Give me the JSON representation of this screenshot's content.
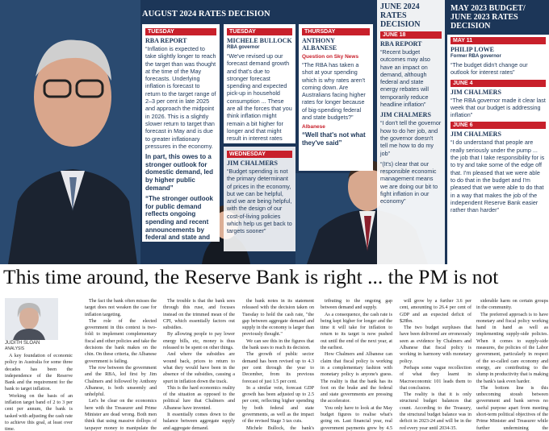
{
  "graphic": {
    "aug_heading": "AUGUST 2024 RATES DECISION",
    "cards": [
      {
        "items": [
          {
            "day": "TUESDAY"
          },
          {
            "name": "RBA REPORT"
          },
          {
            "quote": "“Inflation is expected to take slightly longer to reach the target than was thought at the time of the May forecasts. Underlying inflation is forecast to return to the target range of 2–3 per cent in late 2025 and approach the midpoint in 2026. This is a slightly slower return to target than forecast in May and is due to greater inflationary pressures in the economy."
          },
          {
            "quote": "In part, this owes to a stronger outlook for domestic demand, led by higher public demand”"
          },
          {
            "quote": "“The stronger outlook for public demand reflects ongoing spending and recent announcements by federal and state and territory governments”"
          }
        ]
      },
      {
        "items": [
          {
            "day": "TUESDAY"
          },
          {
            "name": "MICHELE BULLOCK"
          },
          {
            "role": "RBA governor"
          },
          {
            "quote": "“We've revised up our forecast demand growth and that's due to stronger forecast spending and expected pick-up in household consumption ... These are all the forces that you think inflation might remain a bit higher for longer and that might result in interest rates remaining higher for longer”"
          }
        ]
      },
      {
        "items": [
          {
            "day": "WEDNESDAY"
          },
          {
            "name": "JIM CHALMERS"
          },
          {
            "quote": "“Budget spending is not the primary determinant of prices in the economy, but we can be helpful, and we are being helpful, with the design of our cost-of-living policies which help us get back to targets sooner”"
          }
        ]
      },
      {
        "items": [
          {
            "day": "THURSDAY"
          },
          {
            "name": "ANTHONY ALBANESE"
          },
          {
            "label": "Question on Sky News"
          },
          {
            "quote": "“The RBA has taken a shot at your spending which is why rates aren't coming down. Are Australians facing higher rates for longer because of big-spending federal and state budgets?”"
          },
          {
            "label": "Albanese"
          },
          {
            "quote": "“Well that's not what they've said”"
          }
        ]
      },
      {
        "items": [
          {
            "heading": "JUNE 2024 RATES DECISION"
          },
          {
            "day": "JUNE 18"
          },
          {
            "name": "RBA REPORT"
          },
          {
            "quote": "“Recent budget outcomes may also have an impact on demand, although federal and state energy rebates will temporarily reduce headline inflation”"
          },
          {
            "name": "JIM CHALMERS"
          },
          {
            "quote": "“I don't tell the governor how to do her job, and the governor doesn't tell me how to do my job”"
          },
          {
            "quote": "“(It's) clear that our responsible economic management means we are doing our bit to fight inflation in our economy”"
          }
        ]
      },
      {
        "items": [
          {
            "heading": "MAY 2023 BUDGET/ JUNE 2023 RATES DECISION"
          },
          {
            "day": "MAY 11"
          },
          {
            "name": "PHILIP LOWE"
          },
          {
            "role": "Former RBA governor"
          },
          {
            "quote": "“The budget didn't change our outlook for interest rates”"
          },
          {
            "day": "JUNE 4"
          },
          {
            "name": "JIM CHALMERS"
          },
          {
            "quote": "“The RBA governor made it clear last week that our budget is addressing inflation”"
          },
          {
            "day": "JUNE 6"
          },
          {
            "name": "JIM CHALMERS"
          },
          {
            "quote": "“I do understand that people are really seriously under the pump ... the job that I take responsibility for is to try and take some of the edge off that. I'm pleased that we were able to do that in the budget and I'm pleased that we were able to do that in a way that makes the job of the independent Reserve Bank easier rather than harder”"
          }
        ]
      }
    ]
  },
  "article": {
    "headline": "This time around, the Reserve Bank is right ... the PM is not",
    "author": "JUDITH SLOAN",
    "author_role": "ANALYSIS",
    "columns": [
      {
        "paragraphs": [
          "A key foundation of economic policy in Australia for some three decades has been the independence of the Reserve Bank and the requirement for the bank to target inflation.",
          "Working on the basis of an inflation target band of 2 to 3 per cent per annum, the bank is tasked with adjusting the cash rate to achieve this goal, at least over time."
        ]
      },
      {
        "paragraphs": [
          "The fact the bank often misses the target does not weaken the case for inflation targeting.",
          "The role of the elected government in this context is two-fold: to implement complementary fiscal and other policies and take the decisions the bank makes on the chin. On these criteria, the Albanese government is failing.",
          "The row between the government and the RBA, led first by Jim Chalmers and followed by Anthony Albanese, is both unseemly and unhelpful.",
          "Let's be clear on the economics here with the Treasurer and Prime Minister are dead wrong. Both men think that using massive dollops of taxpayer money to manipulate the headline CPI is actually achieving the return to the stated inflation target."
        ]
      },
      {
        "paragraphs": [
          "The trouble is that the bank sees through this ruse, and focuses instead on the trimmed mean of the CPI, which essentially factors out subsidies.",
          "By allowing people to pay lower energy bills, etc, money is thus released to be spent on other things.",
          "And where the subsidies are wound back, prices to return to what they would have been in the absence of the subsidies, causing a spurt in inflation down the track.",
          "This is the hard economics reality of the situation as opposed to the political lure that Chalmers and Albanese have invented.",
          "It essentially comes down to the balance between aggregate supply and aggregate demand.",
          "Public sector spending feeds directly into aggregate demand. As"
        ]
      },
      {
        "paragraphs": [
          "the bank notes in its statement released with the decision taken on Tuesday to hold the cash rate, \"the gap between aggregate demand and supply in the economy is larger than previously thought.\"",
          "We can see this in the figures that the bank uses to reach its decision.",
          "The growth of public sector demand has been revised up to 4.3 per cent through the year to December, from its previous forecast of just 1.5 per cent.",
          "In a similar vein, forecast GDP growth has been adjusted up to 2.5 per cent, reflecting higher spending by both federal and state governments, as well as the impact of the revised Stage 3 tax cuts.",
          "Michele Bullock, the bank's governor, explicitly pointed to public sector spending as con-"
        ]
      },
      {
        "paragraphs": [
          "tributing to the ongoing gap between demand and supply.",
          "As a consequence, the cash rate is being kept higher for longer and the time it will take for inflation to return to its target is now pushed out until the end of the next year, at the earliest.",
          "How Chalmers and Albanese can claim that fiscal policy is working in a complementary fashion with monetary policy is anyone's guess. The reality is that the bank has its foot on the brake and the federal and state governments are pressing the accelerator.",
          "You only have to look at the May budget figures to realise what's going on. Last financial year, real government payments grew by 4.5 per cent, coming in at 25.4 per cent of GDP.",
          "This financial year, payments"
        ]
      },
      {
        "paragraphs": [
          "will grow by a further 3.6 per cent, amounting to 26.4 per cent of GDP and an expected deficit of $28bn.",
          "The two budget surpluses that have been delivered are erroneously seen as evidence by Chalmers and Albanese that fiscal policy is working in harmony with monetary policy.",
          "Perhaps some vague recollection of what they learnt in Macroeconomic 101 leads them to that conclusion.",
          "The reality is that it is only structural budget balances that count. According to the Treasury, the structural budget balance was in deficit in 2023-24 and will be in the red every year until 2034-35.",
          "The sad reality is that relying solely on monetary policy to tame inflation is costly, inflicting con-"
        ]
      },
      {
        "paragraphs": [
          "siderable harm on certain groups in the community.",
          "The preferred approach is to have monetary and fiscal policy working hand in hand as well as implementing supply-side policies. When it comes to supply-side measures, the policies of the Labor government, particularly in respect of the so-called care economy and energy, are contributing to the slump in productivity that is making the bank's task even harder.",
          "The bottom line is this unbecoming stoush between government and bank serves no useful purpose apart from meeting short-term political objectives of the Prime Minister and Treasurer while further undermining the government's economic credibility."
        ]
      }
    ]
  }
}
